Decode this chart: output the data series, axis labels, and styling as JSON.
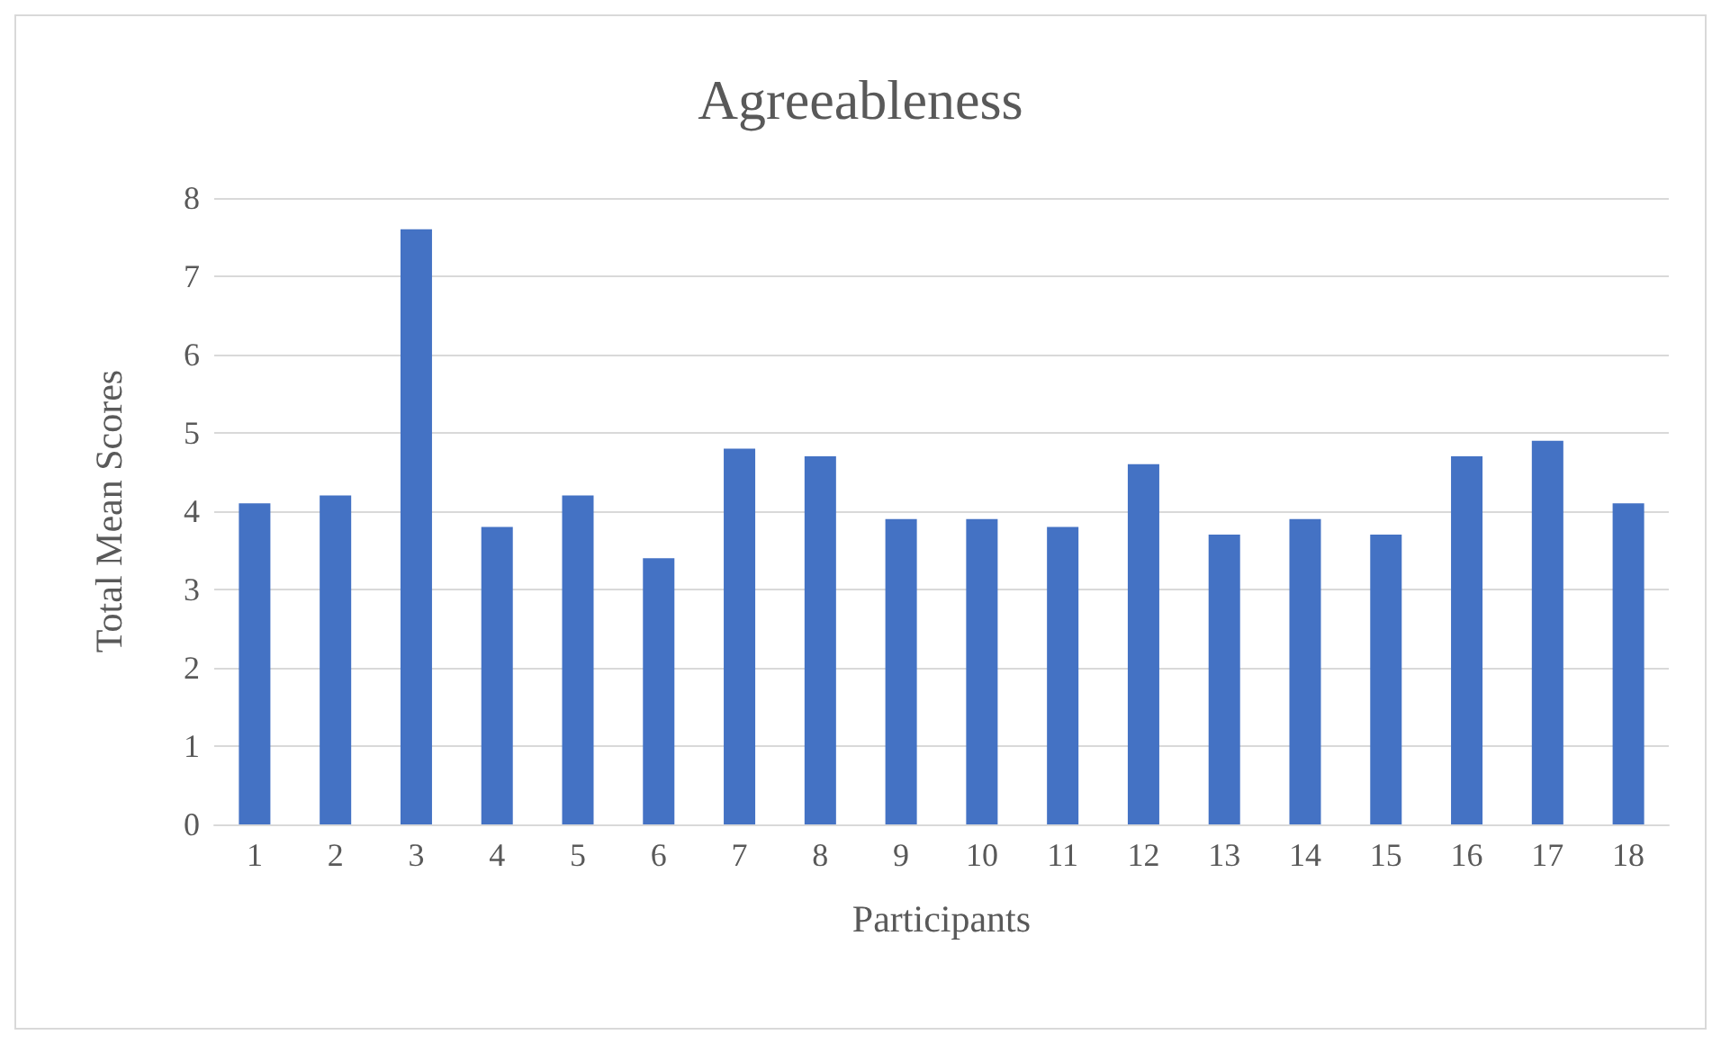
{
  "chart_data": {
    "type": "bar",
    "title": "Agreeableness",
    "xlabel": "Participants",
    "ylabel": "Total Mean Scores",
    "categories": [
      "1",
      "2",
      "3",
      "4",
      "5",
      "6",
      "7",
      "8",
      "9",
      "10",
      "11",
      "12",
      "13",
      "14",
      "15",
      "16",
      "17",
      "18"
    ],
    "values": [
      4.1,
      4.2,
      7.6,
      3.8,
      4.2,
      3.4,
      4.8,
      4.7,
      3.9,
      3.9,
      3.8,
      4.6,
      3.7,
      3.9,
      3.7,
      4.7,
      4.9,
      4.1
    ],
    "color": "#4472c4",
    "ylim": [
      0,
      8
    ],
    "yticks": [
      0,
      1,
      2,
      3,
      4,
      5,
      6,
      7,
      8
    ],
    "grid": "y"
  }
}
